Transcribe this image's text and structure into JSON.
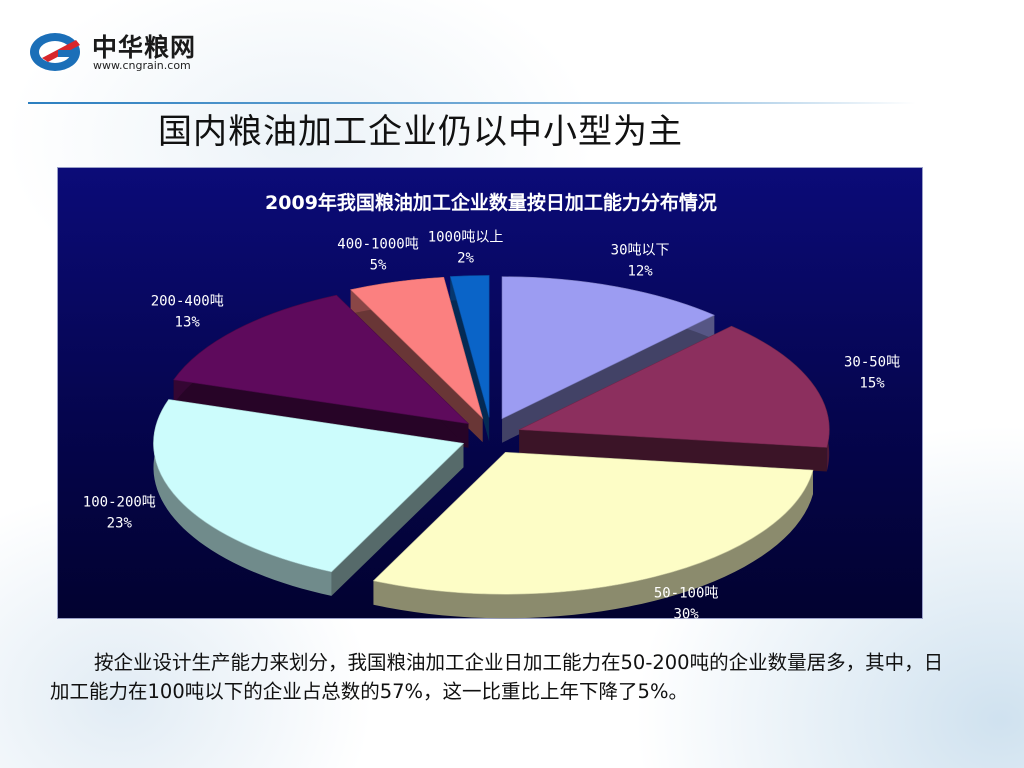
{
  "logo": {
    "name": "中华粮网",
    "url": "www.cngrain.com"
  },
  "slide": {
    "title": "国内粮油加工企业仍以中小型为主"
  },
  "chart_data": {
    "type": "pie",
    "title": "2009年我国粮油加工企业数量按日加工能力分布情况",
    "unit": "%",
    "categories": [
      "30吨以下",
      "30-50吨",
      "50-100吨",
      "100-200吨",
      "200-400吨",
      "400-1000吨",
      "1000吨以上"
    ],
    "values": [
      12,
      15,
      30,
      23,
      13,
      5,
      2
    ],
    "value_labels": [
      "12%",
      "15%",
      "30%",
      "23%",
      "13%",
      "5%",
      "2%"
    ],
    "colors": [
      "#9c9cf2",
      "#8c2f5e",
      "#fdfdc6",
      "#ccfcfc",
      "#5e0a5c",
      "#fb8080",
      "#0a64c8"
    ],
    "style": "3d-exploded",
    "background": "#06065a"
  },
  "caption": {
    "text": "按企业设计生产能力来划分，我国粮油加工企业日加工能力在50-200吨的企业数量居多，其中，日加工能力在100吨以下的企业占总数的57%，这一比重比上年下降了5%。"
  }
}
